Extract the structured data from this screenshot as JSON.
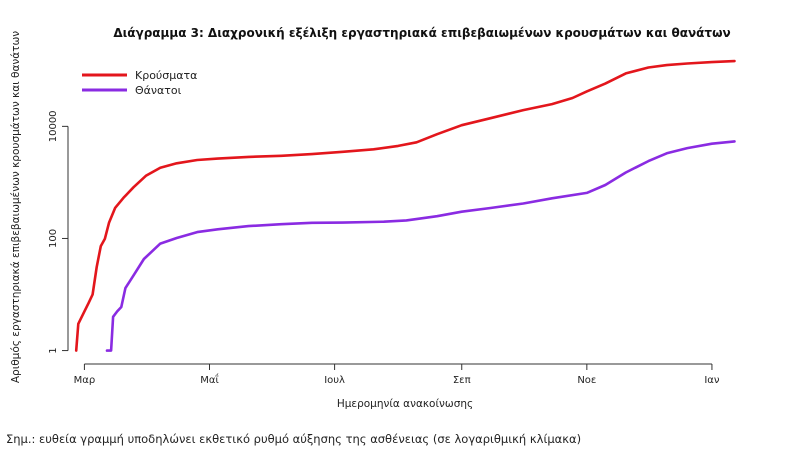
{
  "note": "Σημ.: ευθεία γραμμή υποδηλώνει εκθετικό ρυθμό αύξησης της ασθένειας (σε λογαριθμική κλίμακα)",
  "chart_data": {
    "type": "line",
    "title": "Διάγραμμα 3: Διαχρονική εξέλιξη εργαστηριακά επιβεβαιωμένων κρουσμάτων και θανάτων",
    "xlabel": "Ημερομηνία ανακοίνωσης",
    "ylabel": "Αριθμός εργαστηριακά επιβεβαιωμένων κρουσμάτων και θανάτων",
    "y_scale": "log10",
    "ylim": [
      0.8,
      250000
    ],
    "y_ticks": [
      1,
      100,
      10000
    ],
    "y_tick_labels": [
      "1",
      "100",
      "10000"
    ],
    "xlim": [
      "2020-02-22",
      "2021-01-22"
    ],
    "x_ticks": [
      "2020-03-01",
      "2020-05-01",
      "2020-07-01",
      "2020-09-01",
      "2020-11-01",
      "2021-01-01"
    ],
    "x_tick_labels": [
      "Μαρ",
      "Μαΐ",
      "Ιουλ",
      "Σεπ",
      "Νοε",
      "Ιαν"
    ],
    "grid": false,
    "legend_position": "top-left",
    "series": [
      {
        "name": "Κρούσματα",
        "color": "#e3161c",
        "points": [
          [
            "2020-02-26",
            1
          ],
          [
            "2020-02-27",
            3
          ],
          [
            "2020-03-01",
            5
          ],
          [
            "2020-03-03",
            7
          ],
          [
            "2020-03-05",
            10
          ],
          [
            "2020-03-07",
            31
          ],
          [
            "2020-03-09",
            73
          ],
          [
            "2020-03-11",
            99
          ],
          [
            "2020-03-13",
            190
          ],
          [
            "2020-03-16",
            352
          ],
          [
            "2020-03-20",
            530
          ],
          [
            "2020-03-25",
            821
          ],
          [
            "2020-03-31",
            1314
          ],
          [
            "2020-04-07",
            1832
          ],
          [
            "2020-04-15",
            2192
          ],
          [
            "2020-04-25",
            2506
          ],
          [
            "2020-05-05",
            2663
          ],
          [
            "2020-05-20",
            2850
          ],
          [
            "2020-06-05",
            2980
          ],
          [
            "2020-06-20",
            3203
          ],
          [
            "2020-07-05",
            3511
          ],
          [
            "2020-07-20",
            3900
          ],
          [
            "2020-08-01",
            4477
          ],
          [
            "2020-08-10",
            5200
          ],
          [
            "2020-08-20",
            7250
          ],
          [
            "2020-09-01",
            10500
          ],
          [
            "2020-09-15",
            14000
          ],
          [
            "2020-10-01",
            19500
          ],
          [
            "2020-10-15",
            25000
          ],
          [
            "2020-10-25",
            32000
          ],
          [
            "2020-11-01",
            42000
          ],
          [
            "2020-11-10",
            58000
          ],
          [
            "2020-11-20",
            88000
          ],
          [
            "2020-12-01",
            112000
          ],
          [
            "2020-12-10",
            124000
          ],
          [
            "2020-12-20",
            132000
          ],
          [
            "2021-01-01",
            140000
          ],
          [
            "2021-01-12",
            146000
          ]
        ]
      },
      {
        "name": "Θάνατοι",
        "color": "#8a2be2",
        "points": [
          [
            "2020-03-12",
            1
          ],
          [
            "2020-03-14",
            1
          ],
          [
            "2020-03-15",
            4
          ],
          [
            "2020-03-17",
            5
          ],
          [
            "2020-03-19",
            6
          ],
          [
            "2020-03-21",
            13
          ],
          [
            "2020-03-25",
            22
          ],
          [
            "2020-03-30",
            43
          ],
          [
            "2020-04-07",
            81
          ],
          [
            "2020-04-15",
            102
          ],
          [
            "2020-04-25",
            130
          ],
          [
            "2020-05-05",
            146
          ],
          [
            "2020-05-20",
            166
          ],
          [
            "2020-06-05",
            180
          ],
          [
            "2020-06-20",
            190
          ],
          [
            "2020-07-05",
            192
          ],
          [
            "2020-07-25",
            199
          ],
          [
            "2020-08-05",
            210
          ],
          [
            "2020-08-20",
            250
          ],
          [
            "2020-09-01",
            300
          ],
          [
            "2020-09-15",
            350
          ],
          [
            "2020-10-01",
            420
          ],
          [
            "2020-10-15",
            520
          ],
          [
            "2020-11-01",
            650
          ],
          [
            "2020-11-10",
            900
          ],
          [
            "2020-11-20",
            1500
          ],
          [
            "2020-12-01",
            2400
          ],
          [
            "2020-12-10",
            3300
          ],
          [
            "2020-12-20",
            4100
          ],
          [
            "2021-01-01",
            4900
          ],
          [
            "2021-01-12",
            5400
          ]
        ]
      }
    ]
  }
}
